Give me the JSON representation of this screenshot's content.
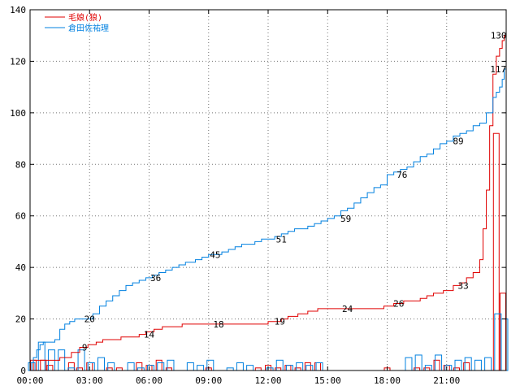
{
  "chart_data": {
    "type": "line",
    "title": "",
    "xlabel": "",
    "ylabel": "",
    "xlim": [
      0,
      1440
    ],
    "ylim": [
      0,
      140
    ],
    "x_ticks": [
      0,
      180,
      360,
      540,
      720,
      900,
      1080,
      1260
    ],
    "x_tick_labels": [
      "00:00",
      "03:00",
      "06:00",
      "09:00",
      "12:00",
      "15:00",
      "18:00",
      "21:00"
    ],
    "y_ticks": [
      0,
      20,
      40,
      60,
      80,
      100,
      120,
      140
    ],
    "y_tick_labels": [
      "0",
      "20",
      "40",
      "60",
      "80",
      "100",
      "120",
      "140"
    ],
    "grid": true,
    "legend_position": "top-left",
    "series": [
      {
        "name": "毛娘(狼)",
        "color": "#e00000",
        "cumulative": [
          [
            0,
            0
          ],
          [
            10,
            4
          ],
          [
            25,
            4
          ],
          [
            50,
            4
          ],
          [
            75,
            4
          ],
          [
            90,
            5
          ],
          [
            110,
            5
          ],
          [
            125,
            7
          ],
          [
            150,
            9
          ],
          [
            175,
            10
          ],
          [
            200,
            11
          ],
          [
            220,
            12
          ],
          [
            250,
            12
          ],
          [
            275,
            13
          ],
          [
            300,
            13
          ],
          [
            330,
            14
          ],
          [
            350,
            15
          ],
          [
            375,
            16
          ],
          [
            400,
            17
          ],
          [
            430,
            17
          ],
          [
            460,
            18
          ],
          [
            490,
            18
          ],
          [
            520,
            18
          ],
          [
            550,
            18
          ],
          [
            580,
            18
          ],
          [
            610,
            18
          ],
          [
            640,
            18
          ],
          [
            660,
            18
          ],
          [
            690,
            18
          ],
          [
            720,
            19
          ],
          [
            740,
            19
          ],
          [
            760,
            20
          ],
          [
            780,
            21
          ],
          [
            810,
            22
          ],
          [
            840,
            23
          ],
          [
            870,
            24
          ],
          [
            900,
            24
          ],
          [
            930,
            24
          ],
          [
            960,
            24
          ],
          [
            990,
            24
          ],
          [
            1020,
            24
          ],
          [
            1050,
            24
          ],
          [
            1070,
            25
          ],
          [
            1100,
            26
          ],
          [
            1130,
            27
          ],
          [
            1160,
            27
          ],
          [
            1180,
            28
          ],
          [
            1200,
            29
          ],
          [
            1220,
            30
          ],
          [
            1250,
            31
          ],
          [
            1280,
            33
          ],
          [
            1300,
            34
          ],
          [
            1320,
            36
          ],
          [
            1340,
            38
          ],
          [
            1360,
            43
          ],
          [
            1370,
            55
          ],
          [
            1380,
            70
          ],
          [
            1390,
            95
          ],
          [
            1400,
            115
          ],
          [
            1410,
            122
          ],
          [
            1420,
            125
          ],
          [
            1428,
            128
          ],
          [
            1434,
            130
          ],
          [
            1440,
            130
          ]
        ],
        "hist_x": [
          10,
          40,
          60,
          100,
          125,
          150,
          180,
          210,
          240,
          270,
          300,
          330,
          360,
          390,
          420,
          450,
          480,
          510,
          540,
          570,
          600,
          630,
          660,
          690,
          720,
          750,
          780,
          810,
          840,
          870,
          900,
          930,
          960,
          990,
          1020,
          1050,
          1080,
          1110,
          1140,
          1170,
          1200,
          1230,
          1260,
          1290,
          1320,
          1350,
          1380,
          1410,
          1430
        ],
        "hist_values": [
          4,
          4,
          2,
          0,
          3,
          1,
          3,
          0,
          1,
          1,
          0,
          3,
          2,
          4,
          1,
          0,
          0,
          0,
          1,
          0,
          0,
          0,
          0,
          1,
          2,
          1,
          2,
          1,
          3,
          3,
          0,
          0,
          0,
          0,
          0,
          0,
          1,
          0,
          0,
          1,
          1,
          4,
          2,
          1,
          3,
          0,
          0,
          92,
          30
        ]
      },
      {
        "name": "倉田佐祐理",
        "color": "#0080e0",
        "cumulative": [
          [
            0,
            0
          ],
          [
            5,
            3
          ],
          [
            10,
            5
          ],
          [
            20,
            8
          ],
          [
            30,
            10
          ],
          [
            40,
            11
          ],
          [
            50,
            11
          ],
          [
            60,
            11
          ],
          [
            75,
            12
          ],
          [
            90,
            16
          ],
          [
            105,
            18
          ],
          [
            120,
            19
          ],
          [
            135,
            20
          ],
          [
            150,
            20
          ],
          [
            170,
            20
          ],
          [
            190,
            22
          ],
          [
            210,
            25
          ],
          [
            230,
            27
          ],
          [
            250,
            29
          ],
          [
            270,
            31
          ],
          [
            290,
            33
          ],
          [
            310,
            34
          ],
          [
            330,
            35
          ],
          [
            350,
            36
          ],
          [
            370,
            37
          ],
          [
            390,
            38
          ],
          [
            410,
            39
          ],
          [
            430,
            40
          ],
          [
            450,
            41
          ],
          [
            470,
            42
          ],
          [
            500,
            43
          ],
          [
            520,
            44
          ],
          [
            540,
            45
          ],
          [
            560,
            45
          ],
          [
            580,
            46
          ],
          [
            600,
            47
          ],
          [
            620,
            48
          ],
          [
            640,
            49
          ],
          [
            660,
            49
          ],
          [
            680,
            50
          ],
          [
            700,
            51
          ],
          [
            720,
            51
          ],
          [
            740,
            52
          ],
          [
            760,
            53
          ],
          [
            780,
            54
          ],
          [
            800,
            55
          ],
          [
            820,
            55
          ],
          [
            840,
            56
          ],
          [
            860,
            57
          ],
          [
            880,
            58
          ],
          [
            900,
            59
          ],
          [
            920,
            60
          ],
          [
            940,
            62
          ],
          [
            960,
            63
          ],
          [
            980,
            65
          ],
          [
            1000,
            67
          ],
          [
            1020,
            69
          ],
          [
            1040,
            71
          ],
          [
            1060,
            72
          ],
          [
            1080,
            76
          ],
          [
            1100,
            77
          ],
          [
            1120,
            78
          ],
          [
            1140,
            79
          ],
          [
            1160,
            81
          ],
          [
            1180,
            83
          ],
          [
            1200,
            84
          ],
          [
            1220,
            86
          ],
          [
            1240,
            88
          ],
          [
            1260,
            89
          ],
          [
            1280,
            91
          ],
          [
            1300,
            92
          ],
          [
            1320,
            93
          ],
          [
            1340,
            95
          ],
          [
            1360,
            96
          ],
          [
            1380,
            100
          ],
          [
            1400,
            106
          ],
          [
            1410,
            108
          ],
          [
            1420,
            110
          ],
          [
            1428,
            113
          ],
          [
            1434,
            117
          ],
          [
            1440,
            117
          ]
        ],
        "hist_x": [
          5,
          35,
          65,
          95,
          125,
          155,
          185,
          215,
          245,
          275,
          305,
          335,
          365,
          395,
          425,
          455,
          485,
          515,
          545,
          575,
          605,
          635,
          665,
          695,
          725,
          755,
          785,
          815,
          845,
          875,
          905,
          935,
          965,
          995,
          1025,
          1055,
          1085,
          1115,
          1145,
          1175,
          1205,
          1235,
          1265,
          1295,
          1325,
          1355,
          1385,
          1415,
          1435
        ],
        "hist_values": [
          3,
          11,
          8,
          8,
          1,
          8,
          3,
          5,
          3,
          0,
          3,
          1,
          2,
          3,
          4,
          0,
          3,
          2,
          4,
          0,
          1,
          3,
          2,
          0,
          1,
          4,
          2,
          3,
          2,
          3,
          0,
          0,
          0,
          0,
          0,
          0,
          0,
          0,
          5,
          6,
          2,
          6,
          2,
          4,
          5,
          4,
          5,
          22,
          20
        ]
      }
    ],
    "annotations": [
      {
        "series": 0,
        "x": 165,
        "y": 9,
        "text": "9"
      },
      {
        "series": 0,
        "x": 360,
        "y": 14,
        "text": "14"
      },
      {
        "series": 0,
        "x": 570,
        "y": 18,
        "text": "18"
      },
      {
        "series": 0,
        "x": 755,
        "y": 19,
        "text": "19"
      },
      {
        "series": 0,
        "x": 960,
        "y": 24,
        "text": "24"
      },
      {
        "series": 0,
        "x": 1115,
        "y": 26,
        "text": "26"
      },
      {
        "series": 0,
        "x": 1310,
        "y": 33,
        "text": "33"
      },
      {
        "series": 0,
        "x": 1417,
        "y": 130,
        "text": "130"
      },
      {
        "series": 1,
        "x": 180,
        "y": 20,
        "text": "20"
      },
      {
        "series": 1,
        "x": 380,
        "y": 36,
        "text": "36"
      },
      {
        "series": 1,
        "x": 560,
        "y": 45,
        "text": "45"
      },
      {
        "series": 1,
        "x": 760,
        "y": 51,
        "text": "51"
      },
      {
        "series": 1,
        "x": 955,
        "y": 59,
        "text": "59"
      },
      {
        "series": 1,
        "x": 1125,
        "y": 76,
        "text": "76"
      },
      {
        "series": 1,
        "x": 1295,
        "y": 89,
        "text": "89"
      },
      {
        "series": 1,
        "x": 1416,
        "y": 117,
        "text": "117"
      }
    ]
  }
}
